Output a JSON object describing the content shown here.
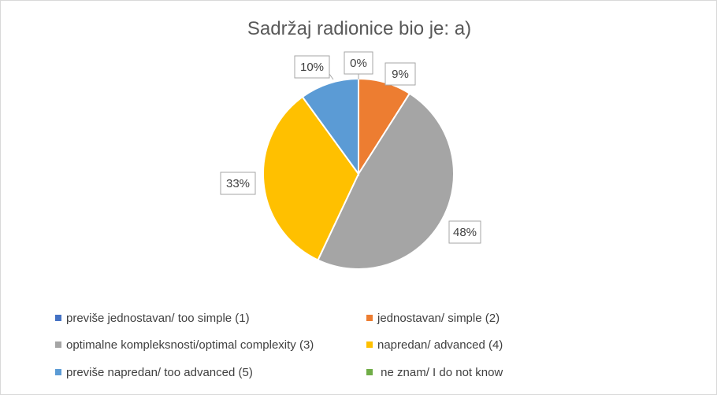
{
  "chart_data": {
    "type": "pie",
    "title": "Sadržaj radionice bio je: a)",
    "legend_position": "bottom",
    "categories": [
      "previše jednostavan/ too simple (1)",
      "jednostavan/ simple (2)",
      "optimalne kompleksnosti/optimal complexity (3)",
      "napredan/ advanced (4)",
      "previše napredan/ too advanced (5)",
      " ne znam/ I do not know"
    ],
    "values": [
      0,
      9,
      48,
      33,
      10,
      0
    ],
    "data_labels": [
      "0%",
      "9%",
      "48%",
      "33%",
      "10%",
      ""
    ],
    "colors": [
      "#4472c4",
      "#ed7d31",
      "#a5a5a5",
      "#ffc000",
      "#5b9bd5",
      "#70ad47"
    ]
  }
}
